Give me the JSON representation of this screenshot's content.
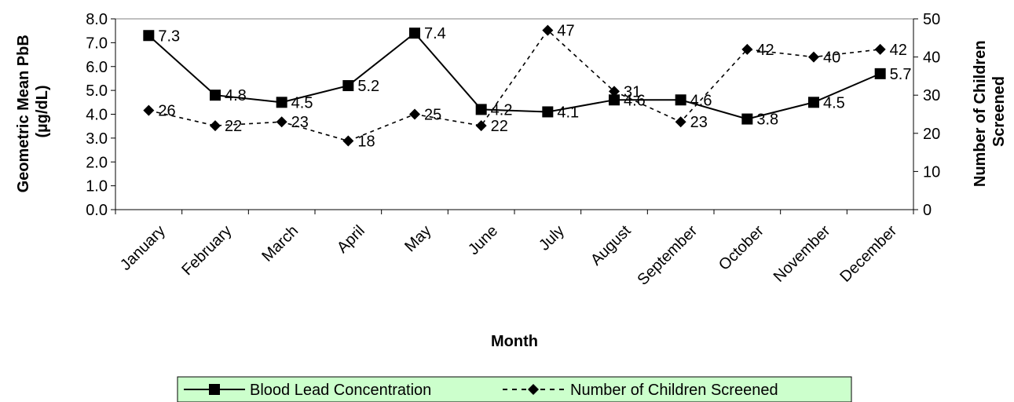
{
  "chart_data": {
    "type": "line",
    "categories": [
      "January",
      "February",
      "March",
      "April",
      "May",
      "June",
      "July",
      "August",
      "September",
      "October",
      "November",
      "December"
    ],
    "xlabel": "Month",
    "ylabel": "Geometric Mean PbB (µg/dL)",
    "ylabel_lines": [
      "Geometric Mean PbB",
      "(µg/dL)"
    ],
    "y2label": "Number of Children Screened",
    "y2label_lines": [
      "Number of Children",
      "Screened"
    ],
    "ylim": [
      0,
      8
    ],
    "yticks": [
      "0.0",
      "1.0",
      "2.0",
      "3.0",
      "4.0",
      "5.0",
      "6.0",
      "7.0",
      "8.0"
    ],
    "y2lim": [
      0,
      50
    ],
    "y2ticks": [
      "0",
      "10",
      "20",
      "30",
      "40",
      "50"
    ],
    "series": [
      {
        "name": "Blood Lead Concentration",
        "axis": "left",
        "values": [
          7.3,
          4.8,
          4.5,
          5.2,
          7.4,
          4.2,
          4.1,
          4.6,
          4.6,
          3.8,
          4.5,
          5.7
        ],
        "labels": [
          "7.3",
          "4.8",
          "4.5",
          "5.2",
          "7.4",
          "4.2",
          "4.1",
          "4.6",
          "4.6",
          "3.8",
          "4.5",
          "5.7"
        ],
        "style": "solid",
        "marker": "square"
      },
      {
        "name": "Number of Children Screened",
        "axis": "right",
        "values": [
          26,
          22,
          23,
          18,
          25,
          22,
          47,
          31,
          23,
          42,
          40,
          42
        ],
        "labels": [
          "26",
          "22",
          "23",
          "18",
          "25",
          "22",
          "47",
          "31",
          "23",
          "42",
          "40",
          "42"
        ],
        "style": "dashed",
        "marker": "diamond"
      }
    ],
    "legend": {
      "placement": "bottom",
      "background": "#CCFFCC"
    },
    "grid": false
  }
}
